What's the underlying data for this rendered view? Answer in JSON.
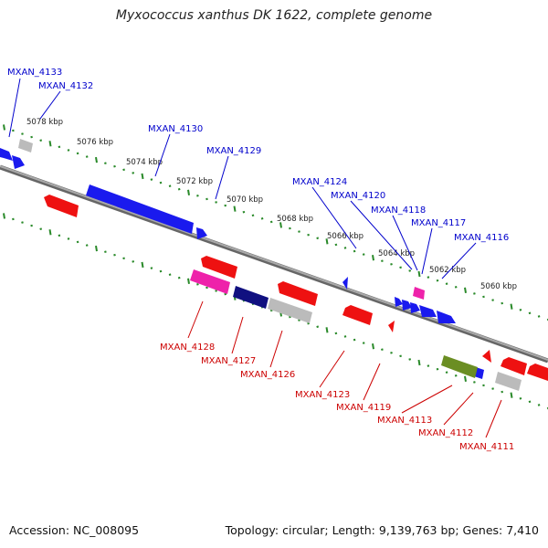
{
  "title": "Myxococcus xanthus DK 1622, complete genome",
  "footer": {
    "accession": "Accession: NC_008095",
    "summary": "Topology: circular; Length: 9,139,763 bp; Genes: 7,410"
  },
  "colors": {
    "backbone": "#888888",
    "tick": "#2a8a2a",
    "label_forward": "#0000cc",
    "label_reverse": "#cc0000",
    "gene_blue": "#1a1aee",
    "gene_red": "#ee1111",
    "gene_magenta": "#ee22aa",
    "gene_navy": "#101080",
    "gene_gray": "#bbbbbb",
    "gene_olive": "#6b8e23"
  },
  "ticks": [
    {
      "label": "5078 kbp"
    },
    {
      "label": "5076 kbp"
    },
    {
      "label": "5074 kbp"
    },
    {
      "label": "5072 kbp"
    },
    {
      "label": "5070 kbp"
    },
    {
      "label": "5068 kbp"
    },
    {
      "label": "5066 kbp"
    },
    {
      "label": "5064 kbp"
    },
    {
      "label": "5062 kbp"
    },
    {
      "label": "5060 kbp"
    }
  ],
  "forward_labels": [
    {
      "label": "MXAN_4133"
    },
    {
      "label": "MXAN_4132"
    },
    {
      "label": "MXAN_4130"
    },
    {
      "label": "MXAN_4129"
    },
    {
      "label": "MXAN_4124"
    },
    {
      "label": "MXAN_4120"
    },
    {
      "label": "MXAN_4118"
    },
    {
      "label": "MXAN_4117"
    },
    {
      "label": "MXAN_4116"
    }
  ],
  "reverse_labels": [
    {
      "label": "MXAN_4128"
    },
    {
      "label": "MXAN_4127"
    },
    {
      "label": "MXAN_4126"
    },
    {
      "label": "MXAN_4123"
    },
    {
      "label": "MXAN_4119"
    },
    {
      "label": "MXAN_4113"
    },
    {
      "label": "MXAN_4112"
    },
    {
      "label": "MXAN_4111"
    }
  ]
}
